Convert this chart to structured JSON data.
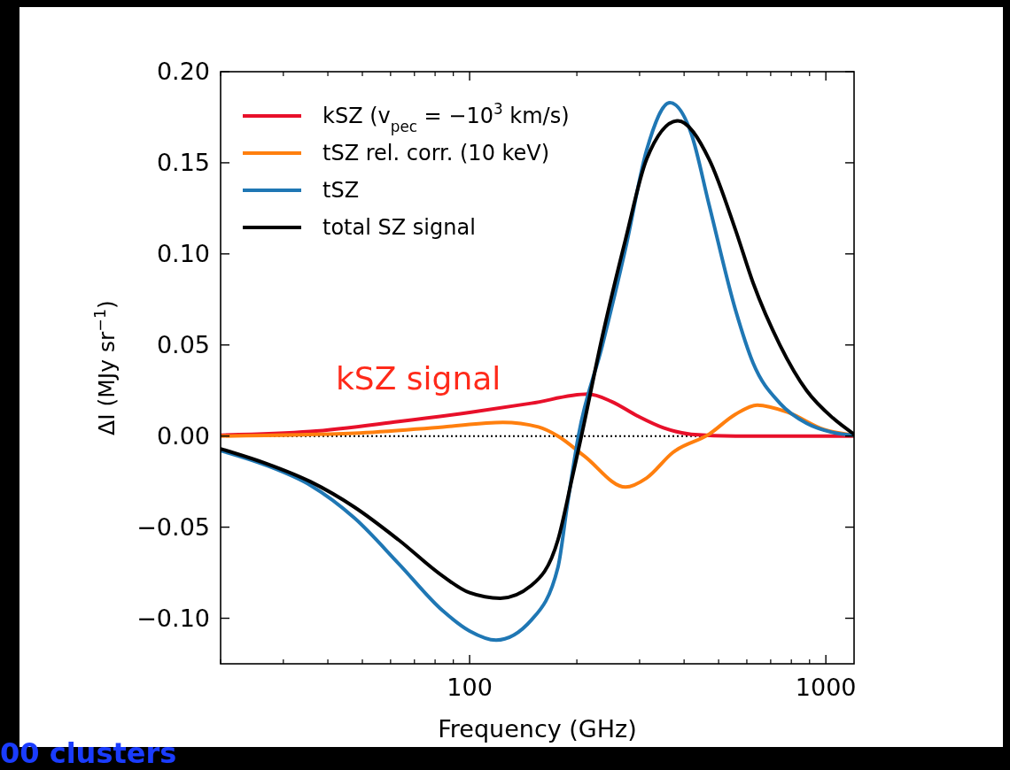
{
  "chart_data": {
    "type": "line",
    "xlabel": "Frequency (GHz)",
    "ylabel": "ΔI (MJy sr$^{−1}$)",
    "log": "x",
    "xlim": [
      20,
      1200
    ],
    "xticks": [
      100,
      1000
    ],
    "ylim": [
      -0.125,
      0.2
    ],
    "yticks": [
      {
        "value": -0.1,
        "label": "−0.10"
      },
      {
        "value": -0.05,
        "label": "−0.05"
      },
      {
        "value": 0,
        "label": "0.00"
      },
      {
        "value": 0.05,
        "label": "0.05"
      },
      {
        "value": 0.1,
        "label": "0.10"
      },
      {
        "value": 0.15,
        "label": "0.15"
      },
      {
        "value": 0.2,
        "label": "0.20"
      }
    ],
    "grid": false,
    "legend": "top left",
    "line_style": "solid",
    "marker": "none",
    "ref_lines": [
      {
        "axis": "y",
        "value": 0,
        "color": "#000000",
        "line_style": "dotted"
      }
    ],
    "annotations": [
      "kSZ signal",
      "00 clusters"
    ],
    "series": [
      {
        "name": "kSZ (v$_{pec}$ = −10$^{3}$ km/s)",
        "color": "#e8102a",
        "x": [
          20,
          35.7,
          63.2,
          100,
          149,
          215,
          250,
          296,
          350,
          419,
          558,
          743,
          1200
        ],
        "values": [
          0.0005,
          0.0025,
          0.008,
          0.013,
          0.018,
          0.023,
          0.019,
          0.011,
          0.0045,
          0.001,
          0.0,
          0.0,
          0.0
        ]
      },
      {
        "name": "tSZ rel. corr. (10 keV)",
        "color": "#ff7f0e",
        "x": [
          20,
          47.5,
          84.2,
          124,
          156,
          177,
          210,
          274,
          314,
          372,
          470,
          558,
          642,
          783,
          990,
          1200
        ],
        "values": [
          0.0,
          0.0015,
          0.005,
          0.0075,
          0.005,
          0.0,
          -0.011,
          -0.028,
          -0.023,
          -0.009,
          0.001,
          0.012,
          0.017,
          0.013,
          0.0035,
          0.0005
        ]
      },
      {
        "name": "tSZ",
        "color": "#1f77b4",
        "x": [
          20,
          26.8,
          35.7,
          47.5,
          63.2,
          84.2,
          100,
          118.7,
          149,
          177,
          188,
          202,
          236,
          274,
          314,
          365,
          419,
          470,
          558,
          625,
          743,
          883,
          1045,
          1200
        ],
        "values": [
          -0.008,
          -0.016,
          -0.027,
          -0.045,
          -0.07,
          -0.096,
          -0.107,
          -0.112,
          -0.101,
          -0.072,
          -0.038,
          0.0,
          0.05,
          0.103,
          0.157,
          0.183,
          0.166,
          0.127,
          0.069,
          0.04,
          0.018,
          0.007,
          0.002,
          0.0005
        ]
      },
      {
        "name": "total SZ signal",
        "color": "#000000",
        "x": [
          20,
          26.8,
          35.7,
          47.5,
          63.2,
          84.2,
          100,
          122,
          149,
          177,
          194,
          206,
          236,
          274,
          314,
          384,
          470,
          558,
          625,
          743,
          883,
          1045,
          1200
        ],
        "values": [
          -0.007,
          -0.015,
          -0.025,
          -0.039,
          -0.057,
          -0.077,
          -0.086,
          -0.089,
          -0.082,
          -0.057,
          -0.023,
          0.0,
          0.055,
          0.108,
          0.152,
          0.173,
          0.152,
          0.113,
          0.084,
          0.05,
          0.025,
          0.01,
          0.001
        ]
      }
    ]
  }
}
